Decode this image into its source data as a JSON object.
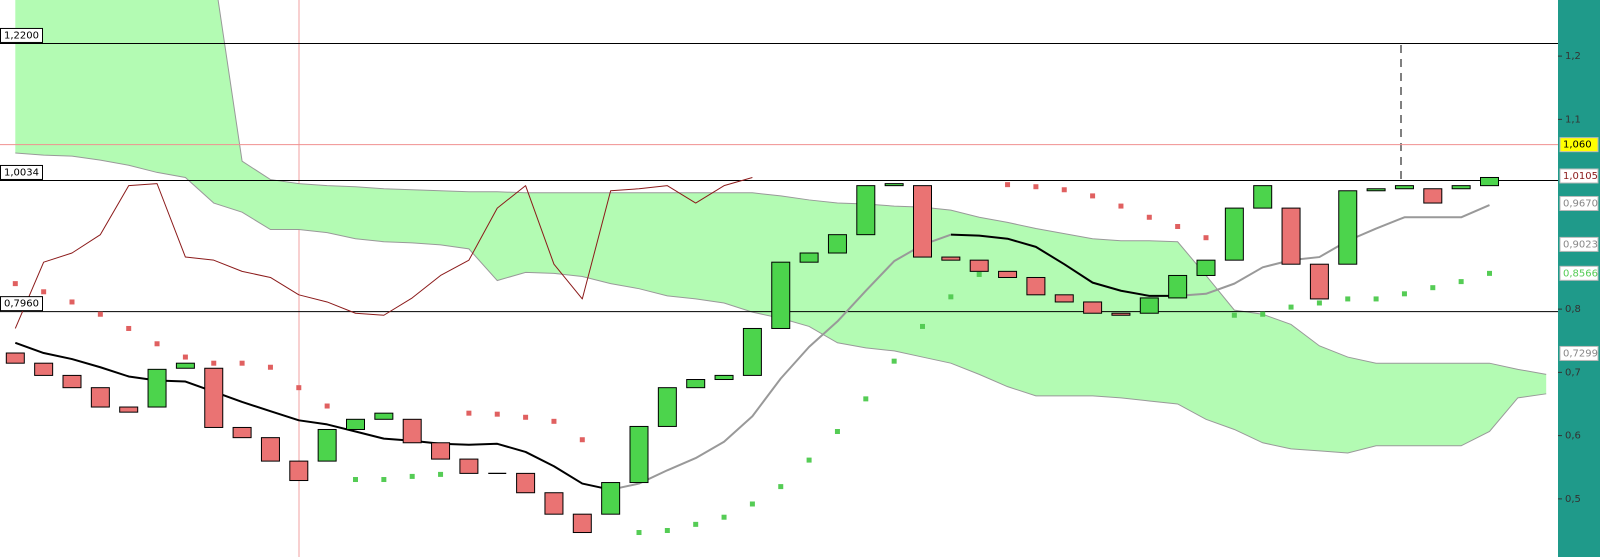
{
  "chart_data": {
    "type": "candlestick",
    "ylim": [
      0.4081,
      1.2887
    ],
    "yticks": [
      {
        "value": 1.2,
        "label": "1,2"
      },
      {
        "value": 1.1,
        "label": "1,1"
      },
      {
        "value": 0.8,
        "label": "0,8"
      },
      {
        "value": 0.7,
        "label": "0,7"
      },
      {
        "value": 0.6,
        "label": "0,6"
      },
      {
        "value": 0.5,
        "label": "0,5"
      }
    ],
    "up_color": "#4cd44c",
    "down_color": "#ea7373",
    "open": [
      0.7306,
      0.7145,
      0.6952,
      0.6758,
      0.6452,
      0.6452,
      0.7065,
      0.7065,
      0.6129,
      0.5968,
      0.5597,
      0.5597,
      0.6097,
      0.6258,
      0.6258,
      0.5887,
      0.5629,
      0.5403,
      0.5403,
      0.5097,
      0.4758,
      0.4758,
      0.5258,
      0.6145,
      0.6758,
      0.6887,
      0.6952,
      0.7694,
      0.8742,
      0.8887,
      0.9177,
      0.9952,
      0.9952,
      0.8823,
      0.8774,
      0.8597,
      0.85,
      0.8226,
      0.8113,
      0.7935,
      0.7935,
      0.8177,
      0.8532,
      0.8774,
      0.9597,
      0.9597,
      0.871,
      0.871,
      0.9871,
      0.9903,
      0.9903,
      0.9903,
      0.9952
    ],
    "close": [
      0.7145,
      0.6952,
      0.6758,
      0.6452,
      0.6371,
      0.7048,
      0.7145,
      0.6129,
      0.5968,
      0.5597,
      0.529,
      0.6097,
      0.6258,
      0.6355,
      0.5887,
      0.5629,
      0.5403,
      0.5403,
      0.5097,
      0.4758,
      0.4468,
      0.5258,
      0.6145,
      0.6758,
      0.6887,
      0.6952,
      0.7694,
      0.8742,
      0.8887,
      0.9177,
      0.9952,
      0.9984,
      0.8823,
      0.8774,
      0.8597,
      0.85,
      0.8226,
      0.8113,
      0.7935,
      0.7903,
      0.8177,
      0.8532,
      0.8774,
      0.9597,
      0.9952,
      0.871,
      0.8161,
      0.9871,
      0.9903,
      0.9952,
      0.9677,
      0.9952,
      1.0081
    ],
    "cloud": {
      "color": "#b3fbb3",
      "line_color": "#999999",
      "span_a": [
        1.35,
        1.35,
        1.35,
        1.35,
        1.35,
        1.35,
        1.35,
        1.335,
        1.0339,
        1.0048,
        0.9984,
        0.9952,
        0.9935,
        0.9903,
        0.9887,
        0.9871,
        0.9855,
        0.9855,
        0.9839,
        0.9839,
        0.9839,
        0.9839,
        0.9839,
        0.9839,
        0.9839,
        0.9839,
        0.9839,
        0.979,
        0.9726,
        0.9677,
        0.9661,
        0.9629,
        0.9613,
        0.9565,
        0.9452,
        0.9371,
        0.9274,
        0.9194,
        0.9113,
        0.9081,
        0.9081,
        0.9065,
        0.8532,
        0.7984,
        0.7919,
        0.7758,
        0.7419,
        0.7242,
        0.7145,
        0.7145,
        0.7145,
        0.7145,
        0.7145,
        0.7048,
        0.6968
      ],
      "span_b": [
        1.0468,
        1.0435,
        1.0419,
        1.0355,
        1.0274,
        1.0161,
        1.0081,
        0.9677,
        0.9532,
        0.9258,
        0.9258,
        0.921,
        0.9113,
        0.9065,
        0.9048,
        0.9016,
        0.8952,
        0.8452,
        0.8581,
        0.8565,
        0.8516,
        0.8403,
        0.8323,
        0.821,
        0.8161,
        0.8097,
        0.7952,
        0.7855,
        0.7726,
        0.7468,
        0.7387,
        0.7339,
        0.7242,
        0.7145,
        0.6968,
        0.6774,
        0.6629,
        0.6629,
        0.6629,
        0.6597,
        0.6548,
        0.65,
        0.6258,
        0.6097,
        0.5887,
        0.579,
        0.5758,
        0.5726,
        0.5839,
        0.5839,
        0.5839,
        0.5839,
        0.6065,
        0.6597,
        0.6661
      ]
    },
    "lines": [
      {
        "color": "#8b1a1a",
        "width": 1,
        "values": [
          0.7694,
          0.8742,
          0.8887,
          0.9177,
          0.9952,
          0.9984,
          0.8823,
          0.8774,
          0.8597,
          0.85,
          0.8226,
          0.8113,
          0.7935,
          0.7903,
          0.8177,
          0.8532,
          0.8774,
          0.9597,
          0.9952,
          0.871,
          0.8161,
          0.9871,
          0.9903,
          0.9952,
          0.9677,
          0.9952,
          1.0081
        ]
      },
      {
        "color": "#000000",
        "width": 2,
        "values": [
          0.7468,
          0.7306,
          0.721,
          0.7081,
          0.6935,
          0.6871,
          0.6855,
          0.6694,
          0.6532,
          0.6387,
          0.6242,
          0.6177,
          0.6065,
          0.5952,
          0.5919,
          0.5871,
          0.5855,
          0.5871,
          0.5742,
          0.5516,
          0.5242,
          0.5145,
          null,
          null,
          null,
          null,
          null,
          null,
          null,
          null,
          null,
          null,
          null,
          0.9177,
          0.9161,
          0.9113,
          0.8984,
          0.871,
          0.8419,
          0.829,
          0.821,
          0.821,
          null,
          null,
          null,
          null,
          null,
          null,
          null,
          null,
          null,
          null,
          null
        ]
      },
      {
        "color": "#999999",
        "width": 2,
        "values": [
          null,
          null,
          null,
          null,
          null,
          null,
          null,
          null,
          null,
          null,
          null,
          null,
          null,
          null,
          null,
          null,
          null,
          null,
          null,
          null,
          null,
          0.5145,
          0.5242,
          0.5452,
          0.5645,
          0.5903,
          0.6306,
          0.6903,
          0.7403,
          0.7806,
          0.829,
          0.8758,
          0.9016,
          0.9177,
          null,
          null,
          null,
          null,
          null,
          null,
          null,
          0.821,
          0.8242,
          0.8403,
          0.8661,
          0.8774,
          0.8823,
          0.9081,
          0.9274,
          0.9452,
          0.9452,
          0.9452,
          0.9645
        ]
      }
    ],
    "sar": [
      {
        "color": "#e06060",
        "values": [
          0.8403,
          0.8274,
          0.8113,
          0.7919,
          0.7694,
          0.7452,
          0.7242,
          0.7145,
          0.7145,
          0.7081,
          0.6758,
          0.6468,
          null,
          null,
          null,
          null,
          0.6355,
          0.6339,
          0.629,
          0.6226,
          0.5935,
          null,
          null,
          null,
          null,
          null,
          null,
          null,
          null,
          null,
          null,
          null,
          null,
          null,
          null,
          0.9968,
          0.9935,
          0.9887,
          0.979,
          0.9629,
          0.9452,
          0.9306,
          0.9129,
          null,
          null,
          null,
          null,
          null,
          null,
          null,
          null,
          null,
          null
        ]
      },
      {
        "color": "#55cc55",
        "values": [
          null,
          null,
          null,
          null,
          null,
          null,
          null,
          null,
          null,
          null,
          null,
          null,
          0.5306,
          0.5306,
          0.5355,
          0.5387,
          null,
          null,
          null,
          null,
          null,
          null,
          0.4468,
          0.45,
          0.4597,
          0.471,
          0.4919,
          0.5194,
          0.5613,
          0.6065,
          0.6581,
          0.7177,
          0.7726,
          0.8194,
          0.8548,
          null,
          null,
          null,
          null,
          null,
          null,
          null,
          null,
          0.7903,
          0.7919,
          0.8032,
          0.8097,
          0.8161,
          0.8161,
          0.8242,
          0.8339,
          0.8435,
          0.8565
        ]
      }
    ],
    "levels": [
      {
        "value": 1.22,
        "label": "1,2200",
        "color": "#000000",
        "side": "left"
      },
      {
        "value": 1.0034,
        "label": "1,0034",
        "color": "#000000",
        "side": "left"
      },
      {
        "value": 0.796,
        "label": "0,7960",
        "color": "#000000",
        "side": "left"
      },
      {
        "value": 1.06,
        "label": "1,060",
        "color": "#f09090",
        "side": "right"
      }
    ],
    "price_tags": [
      {
        "value": 1.06,
        "label": "1,060",
        "color": "#000000",
        "background": "#ffff00"
      },
      {
        "value": 1.0105,
        "label": "1,0105",
        "color": "#8b1a1a",
        "background": "#ffffff"
      },
      {
        "value": 0.967,
        "label": "0,9670",
        "color": "#888888",
        "background": "#ffffff"
      },
      {
        "value": 0.9023,
        "label": "0,9023",
        "color": "#888888",
        "background": "#ffffff"
      },
      {
        "value": 0.8566,
        "label": "0,8566",
        "color": "#55cc55",
        "background": "#ffffff"
      },
      {
        "value": 0.7299,
        "label": "0,7299",
        "color": "#888888",
        "background": "#ffffff"
      }
    ]
  }
}
